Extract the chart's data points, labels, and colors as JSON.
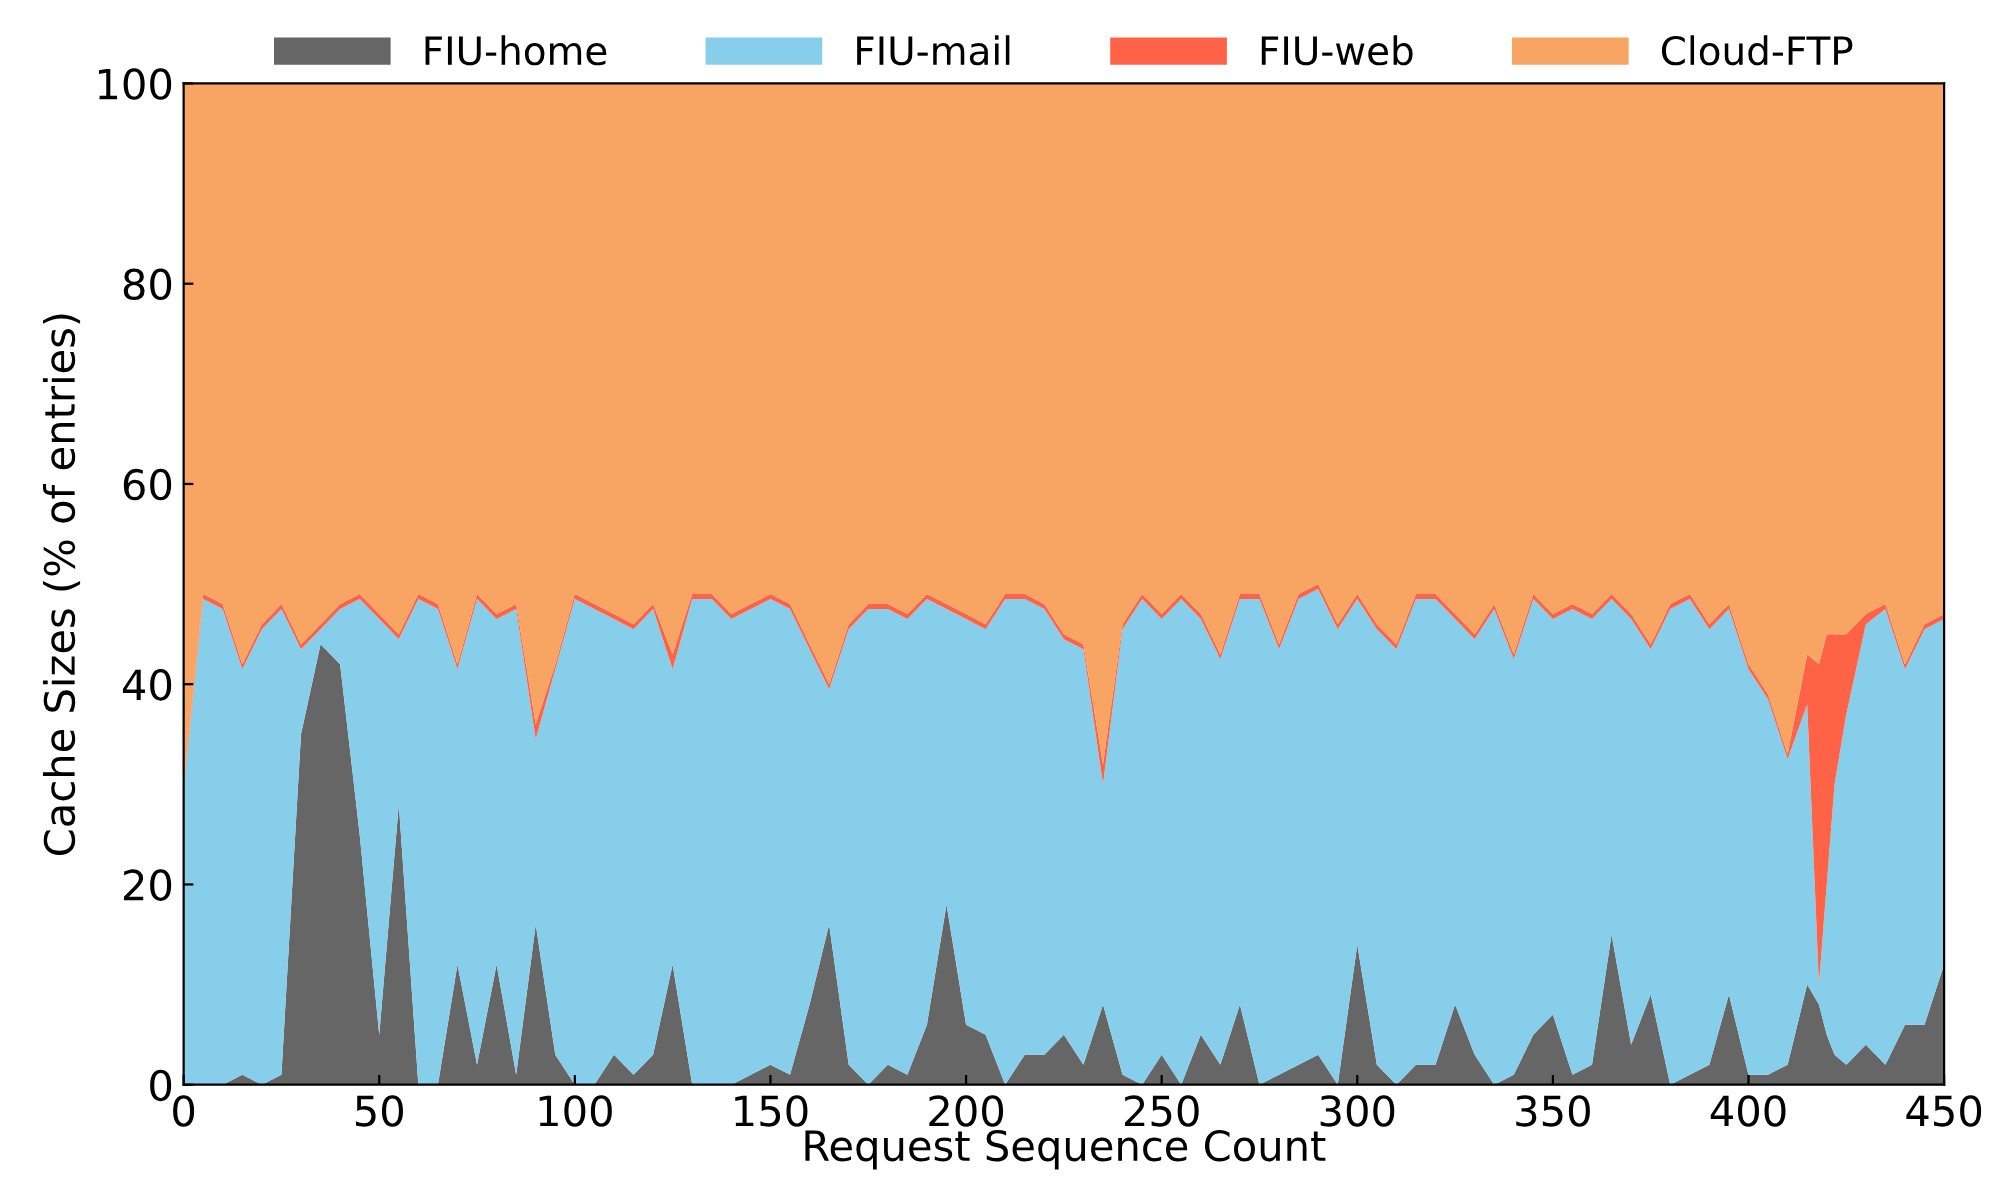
{
  "chart_data": {
    "type": "area",
    "stacked": true,
    "xlabel": "Request Sequence Count",
    "ylabel": "Cache Sizes (% of entries)",
    "x": [
      0,
      5,
      10,
      15,
      20,
      25,
      30,
      35,
      40,
      45,
      50,
      55,
      60,
      65,
      70,
      75,
      80,
      85,
      90,
      95,
      100,
      105,
      110,
      115,
      120,
      125,
      130,
      135,
      140,
      145,
      150,
      155,
      160,
      165,
      170,
      175,
      180,
      185,
      190,
      195,
      200,
      205,
      210,
      215,
      220,
      225,
      230,
      235,
      240,
      245,
      250,
      255,
      260,
      265,
      270,
      275,
      280,
      285,
      290,
      295,
      300,
      305,
      310,
      315,
      320,
      325,
      330,
      335,
      340,
      345,
      350,
      355,
      360,
      365,
      370,
      375,
      380,
      385,
      390,
      395,
      400,
      405,
      410,
      415,
      418,
      420,
      422,
      425,
      430,
      435,
      440,
      445,
      450
    ],
    "series": [
      {
        "name": "FIU-home",
        "color": "#666666",
        "values": [
          0,
          0,
          0,
          1,
          0,
          1,
          35,
          44,
          42,
          25,
          5,
          28,
          0,
          0,
          12,
          2,
          12,
          1,
          16,
          3,
          0,
          0,
          3,
          1,
          3,
          12,
          0,
          0,
          0,
          1,
          2,
          1,
          8,
          16,
          2,
          0,
          2,
          1,
          6,
          18,
          6,
          5,
          0,
          3,
          3,
          5,
          2,
          8,
          1,
          0,
          3,
          0,
          5,
          2,
          8,
          0,
          1,
          2,
          3,
          0,
          14,
          2,
          0,
          2,
          2,
          8,
          3,
          0,
          1,
          5,
          7,
          1,
          2,
          15,
          4,
          9,
          0,
          1,
          2,
          9,
          1,
          1,
          2,
          10,
          8,
          5,
          3,
          2,
          4,
          2,
          6,
          6,
          12
        ]
      },
      {
        "name": "FIU-mail",
        "color": "#87ceeb",
        "values": [
          29.5,
          48.5,
          47.5,
          40.5,
          45.5,
          46.5,
          8.5,
          1.5,
          5.5,
          23.5,
          41.5,
          16.5,
          48.5,
          47.5,
          29.5,
          46.5,
          34.5,
          46.5,
          18.5,
          38.5,
          48.5,
          47.5,
          43.5,
          44.5,
          44.5,
          29.5,
          48.5,
          48.5,
          46.5,
          46.5,
          46.5,
          46.5,
          35.5,
          23.5,
          43.5,
          47.5,
          45.5,
          45.5,
          42.5,
          29.5,
          40.5,
          40.5,
          48.5,
          45.5,
          44.5,
          39.5,
          41.5,
          22,
          44.5,
          48.5,
          43.5,
          48.5,
          41.5,
          40.5,
          40.5,
          48.5,
          42.5,
          46.5,
          46.5,
          45.5,
          34.5,
          43.5,
          43.5,
          46.5,
          46.5,
          38.5,
          41.5,
          47.5,
          41.5,
          43.5,
          39.5,
          46.5,
          44.5,
          33.5,
          42.5,
          34.5,
          47.5,
          47.5,
          43.5,
          38.5,
          40.5,
          37.5,
          30.5,
          28,
          2,
          15,
          27,
          35,
          42,
          45.5,
          35.5,
          39.5,
          34.5
        ]
      },
      {
        "name": "FIU-web",
        "color": "#ff6347",
        "values": [
          0.5,
          0.5,
          0.5,
          0.5,
          0.5,
          0.5,
          0.5,
          0.5,
          0.5,
          0.5,
          0.5,
          0.5,
          0.5,
          0.5,
          0.5,
          0.5,
          0.5,
          0.5,
          1.5,
          0.5,
          0.5,
          0.5,
          0.5,
          0.5,
          0.5,
          1.5,
          0.5,
          0.5,
          0.5,
          0.5,
          0.5,
          0.5,
          0.5,
          0.5,
          0.5,
          0.5,
          0.5,
          0.5,
          0.5,
          0.5,
          0.5,
          0.5,
          0.5,
          0.5,
          0.5,
          0.5,
          0.5,
          2,
          0.5,
          0.5,
          0.5,
          0.5,
          0.5,
          0.5,
          0.5,
          0.5,
          0.5,
          0.5,
          0.5,
          0.5,
          0.5,
          0.5,
          0.5,
          0.5,
          0.5,
          0.5,
          0.5,
          0.5,
          0.5,
          0.5,
          0.5,
          0.5,
          0.5,
          0.5,
          0.5,
          0.5,
          0.5,
          0.5,
          0.5,
          0.5,
          0.5,
          0.5,
          0.5,
          5,
          32,
          25,
          15,
          8,
          1,
          0.5,
          0.5,
          0.5,
          0.5
        ]
      },
      {
        "name": "Cloud-FTP",
        "color": "#f8a462",
        "values": [
          70,
          51,
          52,
          58,
          54,
          52,
          56,
          54,
          52,
          51,
          53,
          55,
          51,
          52,
          58,
          51,
          53,
          52,
          64,
          58,
          51,
          52,
          53,
          54,
          52,
          57,
          51,
          51,
          53,
          52,
          51,
          52,
          56,
          60,
          54,
          52,
          52,
          53,
          51,
          52,
          53,
          54,
          51,
          51,
          52,
          55,
          56,
          68,
          54,
          51,
          53,
          51,
          53,
          57,
          51,
          51,
          56,
          51,
          50,
          54,
          51,
          54,
          56,
          51,
          51,
          53,
          55,
          52,
          57,
          51,
          53,
          52,
          53,
          51,
          53,
          56,
          52,
          51,
          54,
          52,
          58,
          61,
          67,
          57,
          58,
          55,
          55,
          55,
          53,
          52,
          58,
          54,
          53
        ]
      }
    ],
    "xlim": [
      0,
      450
    ],
    "xticks": [
      0,
      50,
      100,
      150,
      200,
      250,
      300,
      350,
      400,
      450
    ],
    "ylim": [
      0,
      100
    ],
    "yticks": [
      0,
      20,
      40,
      60,
      80,
      100
    ],
    "grid": false,
    "legend": "top"
  }
}
